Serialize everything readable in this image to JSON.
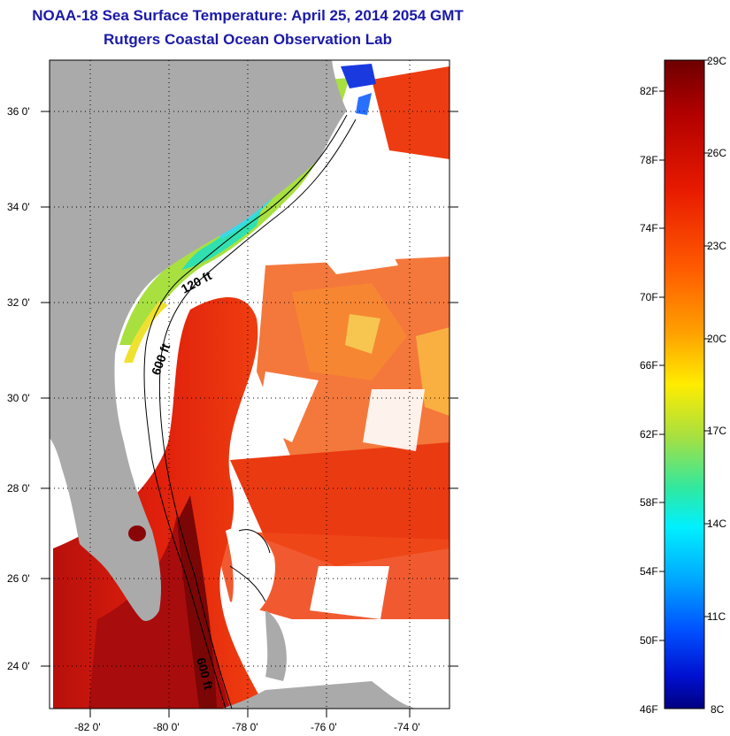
{
  "header": {
    "title": "NOAA-18 Sea Surface Temperature:  April 25, 2014 2054 GMT",
    "subtitle": "Rutgers Coastal Ocean Observation Lab"
  },
  "map": {
    "lat_labels": [
      "36 0'",
      "34 0'",
      "32 0'",
      "30 0'",
      "28 0'",
      "26 0'",
      "24 0'"
    ],
    "lon_labels": [
      "-82 0'",
      "-80 0'",
      "-78 0'",
      "-76 0'",
      "-74 0'"
    ],
    "contour_labels": [
      "120 ft",
      "600 ft",
      "600 ft"
    ],
    "colors": {
      "land": "#aaaaaa",
      "cloud": "#ffffff",
      "gulf_stream": "#c8140c"
    }
  },
  "colorbar": {
    "fahrenheit": [
      "82F",
      "78F",
      "74F",
      "70F",
      "66F",
      "62F",
      "58F",
      "54F",
      "50F",
      "46F"
    ],
    "celsius": [
      "29C",
      "26C",
      "23C",
      "20C",
      "17C",
      "14C",
      "11C",
      "8C"
    ]
  }
}
